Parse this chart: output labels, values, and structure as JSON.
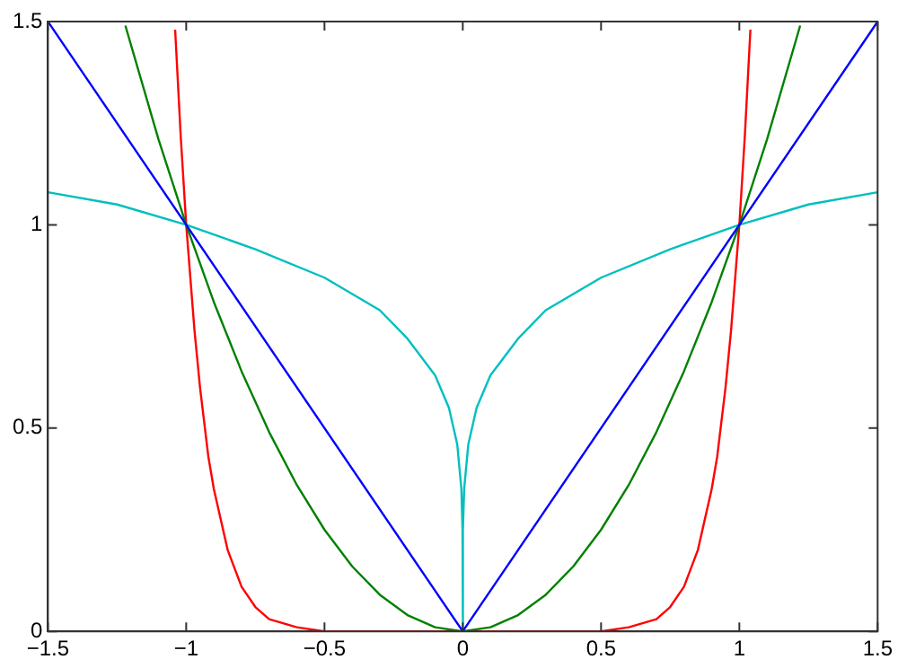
{
  "chart_data": {
    "type": "line",
    "xlim": [
      -1.5,
      1.5
    ],
    "xticks": [
      -1.5,
      -1,
      -0.5,
      0,
      0.5,
      1,
      1.5
    ],
    "ylim": [
      0,
      1.5
    ],
    "yticks": [
      0,
      0.5,
      1,
      1.5
    ],
    "grid": false,
    "legend": false,
    "marker": "none",
    "line_style": "solid",
    "series": [
      {
        "color": "#0000ff",
        "x": [
          -1.5,
          0,
          1.5
        ],
        "values": [
          1.5,
          0,
          1.5
        ]
      },
      {
        "color": "#008000",
        "x": [
          -1.22,
          -1.1,
          -1,
          -0.9,
          -0.8,
          -0.7,
          -0.6,
          -0.5,
          -0.4,
          -0.3,
          -0.2,
          -0.1,
          0,
          0.1,
          0.2,
          0.3,
          0.4,
          0.5,
          0.6,
          0.7,
          0.8,
          0.9,
          1,
          1.1,
          1.22
        ],
        "values": [
          1.49,
          1.21,
          1,
          0.81,
          0.64,
          0.49,
          0.36,
          0.25,
          0.16,
          0.09,
          0.04,
          0.01,
          0,
          0.01,
          0.04,
          0.09,
          0.16,
          0.25,
          0.36,
          0.49,
          0.64,
          0.81,
          1,
          1.21,
          1.49
        ]
      },
      {
        "color": "#ff0000",
        "x": [
          -1.04,
          -1.02,
          -1,
          -0.97,
          -0.95,
          -0.92,
          -0.9,
          -0.85,
          -0.8,
          -0.75,
          -0.7,
          -0.6,
          -0.5,
          0,
          0.5,
          0.6,
          0.7,
          0.75,
          0.8,
          0.85,
          0.9,
          0.92,
          0.95,
          0.97,
          1,
          1.02,
          1.04
        ],
        "values": [
          1.48,
          1.22,
          1,
          0.74,
          0.6,
          0.43,
          0.35,
          0.2,
          0.11,
          0.06,
          0.03,
          0.01,
          0,
          0,
          0,
          0.01,
          0.03,
          0.06,
          0.11,
          0.2,
          0.35,
          0.43,
          0.6,
          0.74,
          1,
          1.22,
          1.48
        ]
      },
      {
        "color": "#00bfbf",
        "x": [
          -1.5,
          -1.25,
          -1,
          -0.75,
          -0.5,
          -0.3,
          -0.2,
          -0.1,
          -0.05,
          -0.02,
          -0.005,
          -0.001,
          0,
          0.001,
          0.005,
          0.02,
          0.05,
          0.1,
          0.2,
          0.3,
          0.5,
          0.75,
          1,
          1.25,
          1.5
        ],
        "values": [
          1.08,
          1.05,
          1,
          0.94,
          0.87,
          0.79,
          0.72,
          0.63,
          0.55,
          0.46,
          0.35,
          0.25,
          0,
          0.25,
          0.35,
          0.46,
          0.55,
          0.63,
          0.72,
          0.79,
          0.87,
          0.94,
          1,
          1.05,
          1.08
        ]
      }
    ]
  }
}
